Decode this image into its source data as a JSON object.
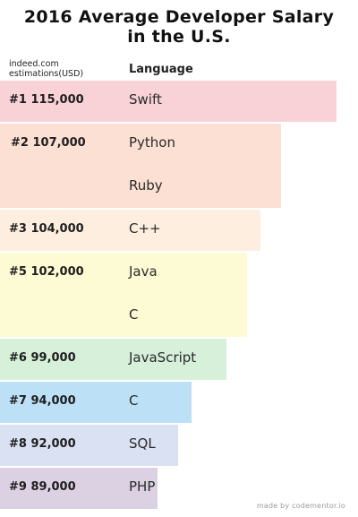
{
  "title_line1": "2016 Average Developer Salary",
  "title_line2": "in the U.S.",
  "header": {
    "source_line1": "indeed.com",
    "source_line2": "estimations(USD)",
    "language": "Language"
  },
  "footer": "made by codementor.io",
  "colors": {
    "rank1": "#f9d2d7",
    "rank2": "#fbe0d3",
    "rank3": "#fdeee0",
    "rank5": "#fdfbd3",
    "rank6": "#d6f0d9",
    "rank7": "#bce0f6",
    "rank8": "#d9e1f2",
    "rank9": "#dcd0e3"
  },
  "chart_data": {
    "type": "bar",
    "orientation": "horizontal",
    "unit": "USD",
    "title": "2016 Average Developer Salary in the U.S.",
    "groups": [
      {
        "rank": "#1",
        "salary": "115,000",
        "value": 115000,
        "languages": [
          "Swift"
        ],
        "color_key": "rank1"
      },
      {
        "rank": "#2",
        "salary": "107,000",
        "value": 107000,
        "languages": [
          "Python",
          "Ruby"
        ],
        "color_key": "rank2"
      },
      {
        "rank": "#3",
        "salary": "104,000",
        "value": 104000,
        "languages": [
          "C++"
        ],
        "color_key": "rank3"
      },
      {
        "rank": "#5",
        "salary": "102,000",
        "value": 102000,
        "languages": [
          "Java",
          "C"
        ],
        "color_key": "rank5"
      },
      {
        "rank": "#6",
        "salary": "99,000",
        "value": 99000,
        "languages": [
          "JavaScript"
        ],
        "color_key": "rank6"
      },
      {
        "rank": "#7",
        "salary": "94,000",
        "value": 94000,
        "languages": [
          "C"
        ],
        "color_key": "rank7"
      },
      {
        "rank": "#8",
        "salary": "92,000",
        "value": 92000,
        "languages": [
          "SQL"
        ],
        "color_key": "rank8"
      },
      {
        "rank": "#9",
        "salary": "89,000",
        "value": 89000,
        "languages": [
          "PHP"
        ],
        "color_key": "rank9"
      }
    ]
  }
}
